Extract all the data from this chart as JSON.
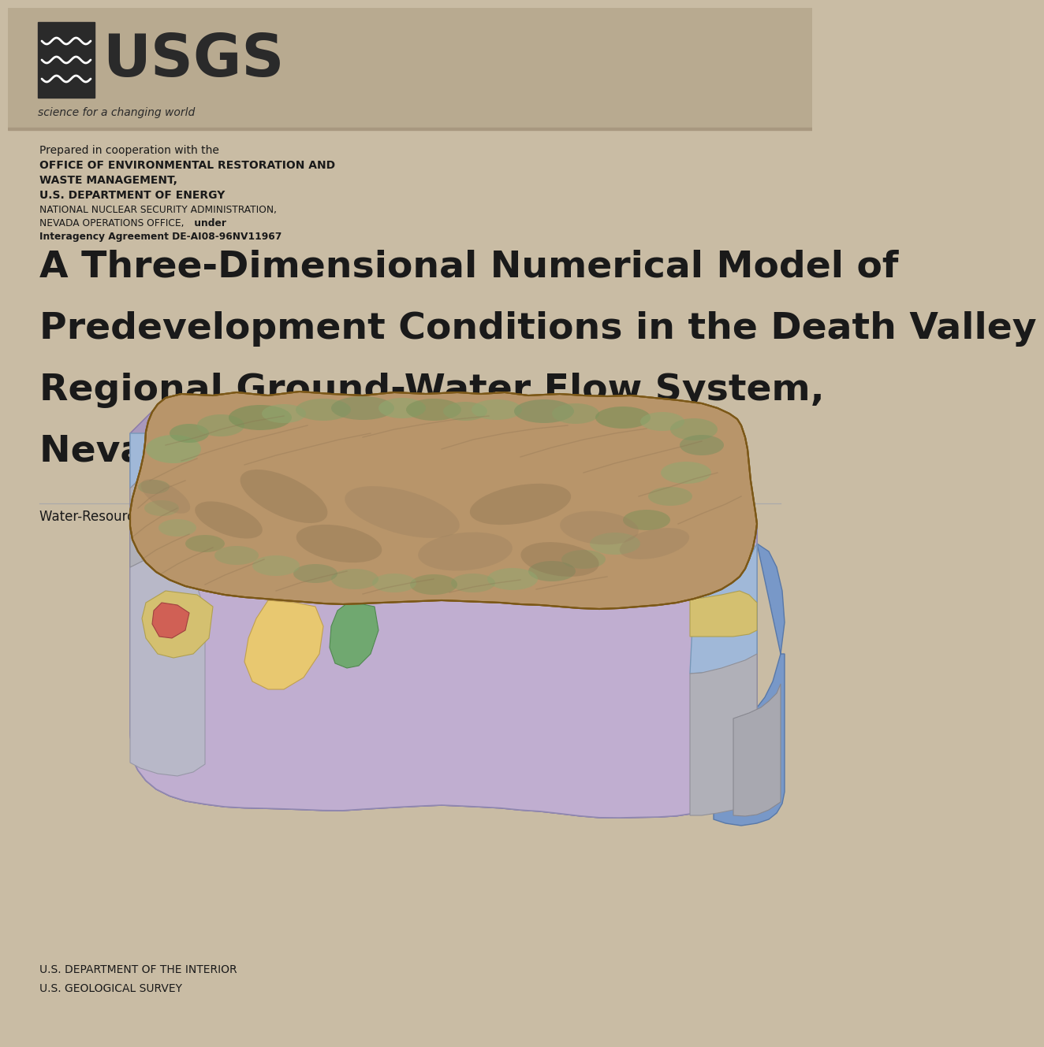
{
  "bg_color": "#c9bcA4",
  "header_bar_color": "#b8aa90",
  "text_color": "#1a1a1a",
  "usgs_tagline": "science for a changing world",
  "coop_lines": [
    {
      "text": "Prepared in cooperation with the",
      "bold": false,
      "size": 10.5
    },
    {
      "text": "OFFICE OF ENVIRONMENTAL RESTORATION AND",
      "bold": true,
      "size": 10.5
    },
    {
      "text": "WASTE MANAGEMENT,",
      "bold": true,
      "size": 10.5
    },
    {
      "text": "U.S. DEPARTMENT OF ENERGY",
      "bold": true,
      "size": 10.5
    },
    {
      "text": "NATIONAL NUCLEAR SECURITY ADMINISTRATION,",
      "bold": false,
      "size": 9.0
    },
    {
      "text": "NEVADA OPERATIONS OFFICE,",
      "bold": false,
      "size": 9.0,
      "suffix": " under",
      "suffix_bold": true
    },
    {
      "text": "Interagency Agreement DE-AI08-96NV11967",
      "bold": true,
      "size": 9.0
    }
  ],
  "main_title": [
    "A Three-Dimensional Numerical Model of",
    "Predevelopment Conditions in the Death Valley",
    "Regional Ground-Water Flow System,",
    "Nevada and California"
  ],
  "main_title_size": 34,
  "report_label": "Water-Resources Investigations Report 02–4102",
  "report_label_size": 12,
  "footer": [
    "U.S. DEPARTMENT OF THE INTERIOR",
    "U.S. GEOLOGICAL SURVEY"
  ],
  "footer_size": 10
}
